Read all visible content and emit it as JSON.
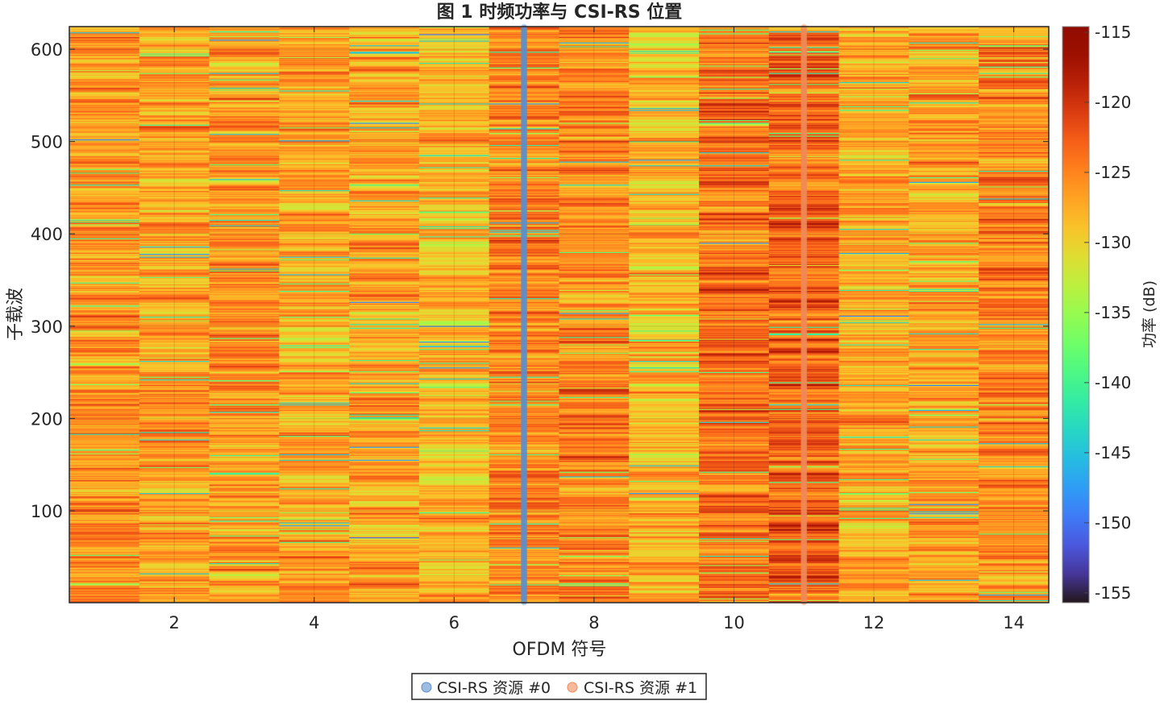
{
  "chart_data": {
    "type": "heatmap",
    "title": "图 1  时频功率与 CSI-RS 位置",
    "xlabel": "OFDM 符号",
    "ylabel": "子载波",
    "colorbar_label": "功率 (dB)",
    "colormap": "turbo",
    "xlim": [
      0.5,
      14.5
    ],
    "ylim": [
      0.5,
      624.5
    ],
    "x": [
      1,
      2,
      3,
      4,
      5,
      6,
      7,
      8,
      9,
      10,
      11,
      12,
      13,
      14
    ],
    "subcarrier_count": 624,
    "xticks": [
      2,
      4,
      6,
      8,
      10,
      12,
      14
    ],
    "yticks": [
      100,
      200,
      300,
      400,
      500,
      600
    ],
    "clim": [
      -155.7,
      -114.6
    ],
    "cticks": [
      -115,
      -120,
      -125,
      -130,
      -135,
      -140,
      -145,
      -150,
      -155
    ],
    "grid": true,
    "symbol_mean_db": [
      -126,
      -127,
      -126,
      -127,
      -127,
      -128,
      -125,
      -125,
      -128,
      -124,
      -123,
      -127,
      -127,
      -125
    ],
    "csi_rs": [
      {
        "name": "CSI-RS 资源 #0",
        "symbol": 7,
        "subcarriers": [
          1,
          624
        ],
        "color": "#5b8fcf"
      },
      {
        "name": "CSI-RS 资源 #1",
        "symbol": 11,
        "subcarriers": [
          1,
          624
        ],
        "color": "#f08a5a"
      }
    ],
    "legend_placement": "bottom-center"
  }
}
